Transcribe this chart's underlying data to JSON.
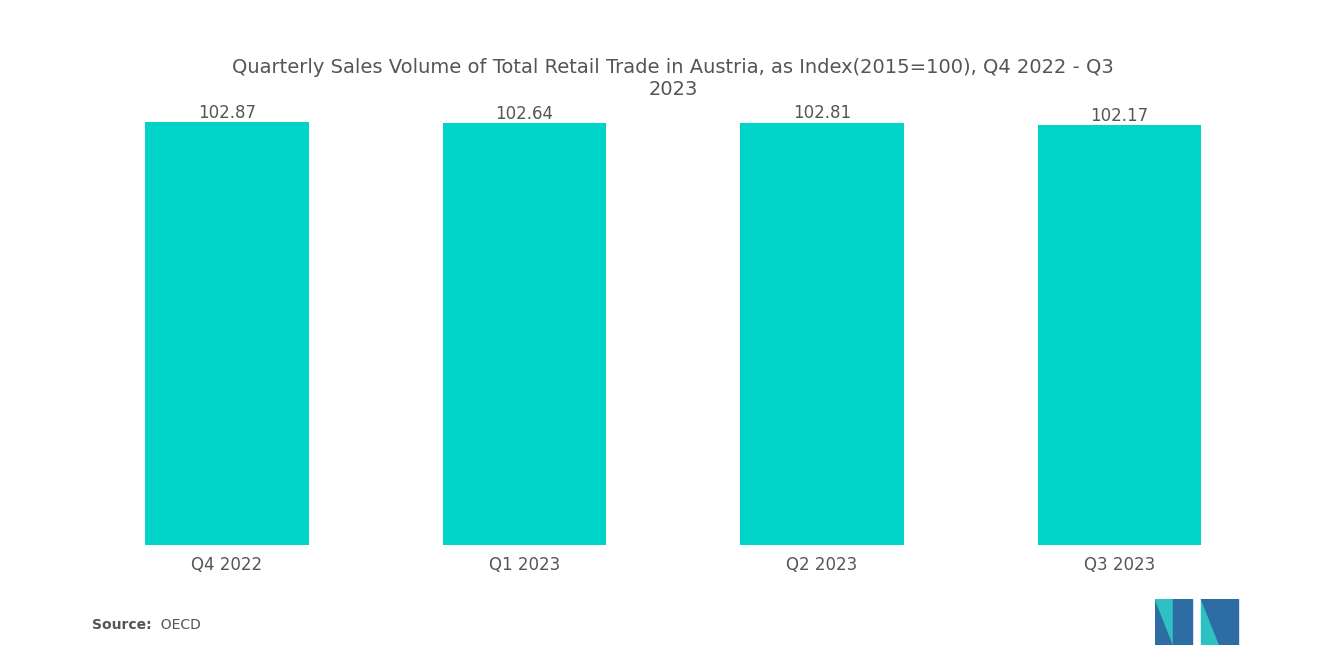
{
  "categories": [
    "Q4 2022",
    "Q1 2023",
    "Q2 2023",
    "Q3 2023"
  ],
  "values": [
    102.87,
    102.64,
    102.81,
    102.17
  ],
  "bar_color": "#00D4C8",
  "title_line1": "Quarterly Sales Volume of Total Retail Trade in Austria, as Index(2015=100), Q4 2022 - Q3",
  "title_line2": "2023",
  "ylim_min": 0,
  "ylim_max": 103.5,
  "source_label": "Source:",
  "source_value": "  OECD",
  "background_color": "#ffffff",
  "title_fontsize": 14,
  "value_label_fontsize": 12,
  "tick_fontsize": 12,
  "source_fontsize": 10,
  "bar_width": 0.55,
  "title_color": "#555555",
  "label_color": "#555555",
  "tick_color": "#555555",
  "logo_blue": "#2E6DA4",
  "logo_teal": "#2DC1C1"
}
